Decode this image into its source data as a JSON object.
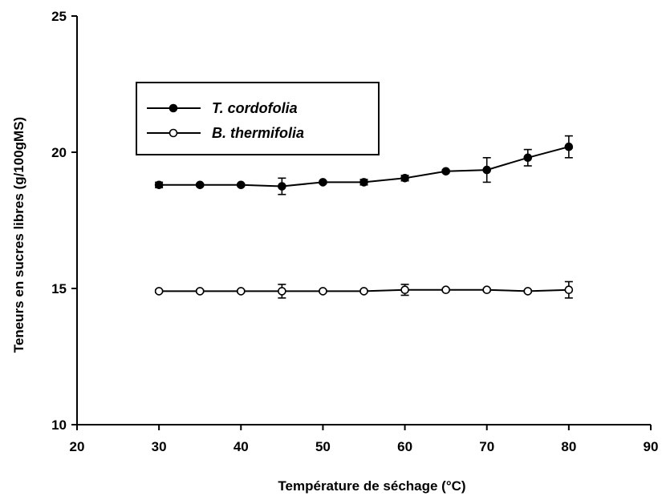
{
  "chart_data": {
    "type": "line",
    "xlabel": "Température de  séchage (°C)",
    "ylabel": "Teneurs en sucres libres (g/100gMS)",
    "xlim": [
      20,
      90
    ],
    "ylim": [
      10,
      25
    ],
    "x_ticks": [
      "20",
      "30",
      "40",
      "50",
      "60",
      "70",
      "80",
      "90"
    ],
    "y_ticks": [
      "10",
      "15",
      "20",
      "25"
    ],
    "grid": false,
    "legend_position": "upper-left",
    "x": [
      30,
      35,
      40,
      45,
      50,
      55,
      60,
      65,
      70,
      75,
      80
    ],
    "series": [
      {
        "name": "T. cordofolia",
        "marker": "filled-circle",
        "values": [
          18.8,
          18.8,
          18.8,
          18.75,
          18.9,
          18.9,
          19.05,
          19.3,
          19.35,
          19.8,
          20.2
        ],
        "errors": [
          0.1,
          0.05,
          0.05,
          0.3,
          0.05,
          0.1,
          0.1,
          0.05,
          0.45,
          0.3,
          0.4
        ]
      },
      {
        "name": "B. thermifolia",
        "marker": "open-circle",
        "values": [
          14.9,
          14.9,
          14.9,
          14.9,
          14.9,
          14.9,
          14.95,
          14.95,
          14.95,
          14.9,
          14.95
        ],
        "errors": [
          0.05,
          0.05,
          0.05,
          0.25,
          0.05,
          0.05,
          0.2,
          0.05,
          0.05,
          0.05,
          0.3
        ]
      }
    ]
  }
}
